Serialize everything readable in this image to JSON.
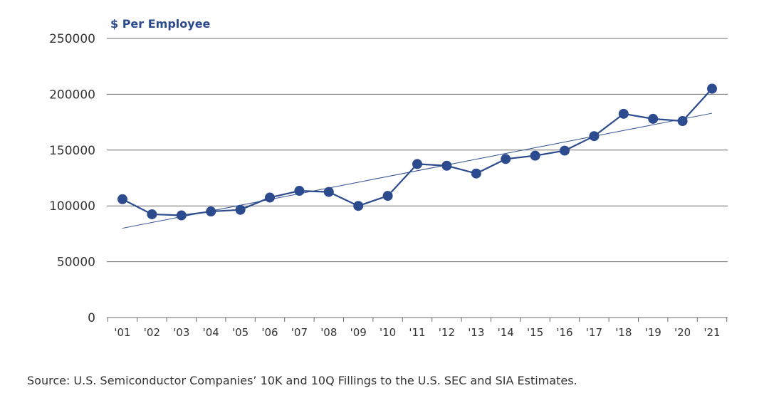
{
  "chart_data": {
    "type": "line",
    "title": "$ Per Employee",
    "categories": [
      "'01",
      "'02",
      "'03",
      "'04",
      "'05",
      "'06",
      "'07",
      "'08",
      "'09",
      "'10",
      "'11",
      "'12",
      "'13",
      "'14",
      "'15",
      "'16",
      "'17",
      "'18",
      "'19",
      "'20",
      "'21"
    ],
    "series": [
      {
        "name": "$ Per Employee",
        "values": [
          106000,
          92500,
          91500,
          95000,
          96500,
          107500,
          113500,
          112500,
          100000,
          109000,
          137500,
          136000,
          129000,
          142000,
          145000,
          149500,
          162500,
          182500,
          178000,
          176000,
          205000
        ]
      }
    ],
    "trendline": {
      "name": "trend",
      "start": 80000,
      "end": 183000
    },
    "ylim": [
      0,
      250000
    ],
    "yticks": [
      "250000",
      "200000",
      "150000",
      "100000",
      "50000",
      "0"
    ],
    "ytick_values": [
      250000,
      200000,
      150000,
      100000,
      50000,
      0
    ],
    "xlabel": "",
    "ylabel": "",
    "grid": true,
    "source": "Source: U.S. Semiconductor Companies’ 10K and 10Q Fillings to the U.S. SEC and SIA Estimates."
  },
  "colors": {
    "series": "#2c4b8e",
    "title": "#2c4b8e",
    "grid": "#6b6b6b",
    "axis": "#6b6b6b",
    "trend": "#2c4b8e",
    "text": "#333333"
  }
}
